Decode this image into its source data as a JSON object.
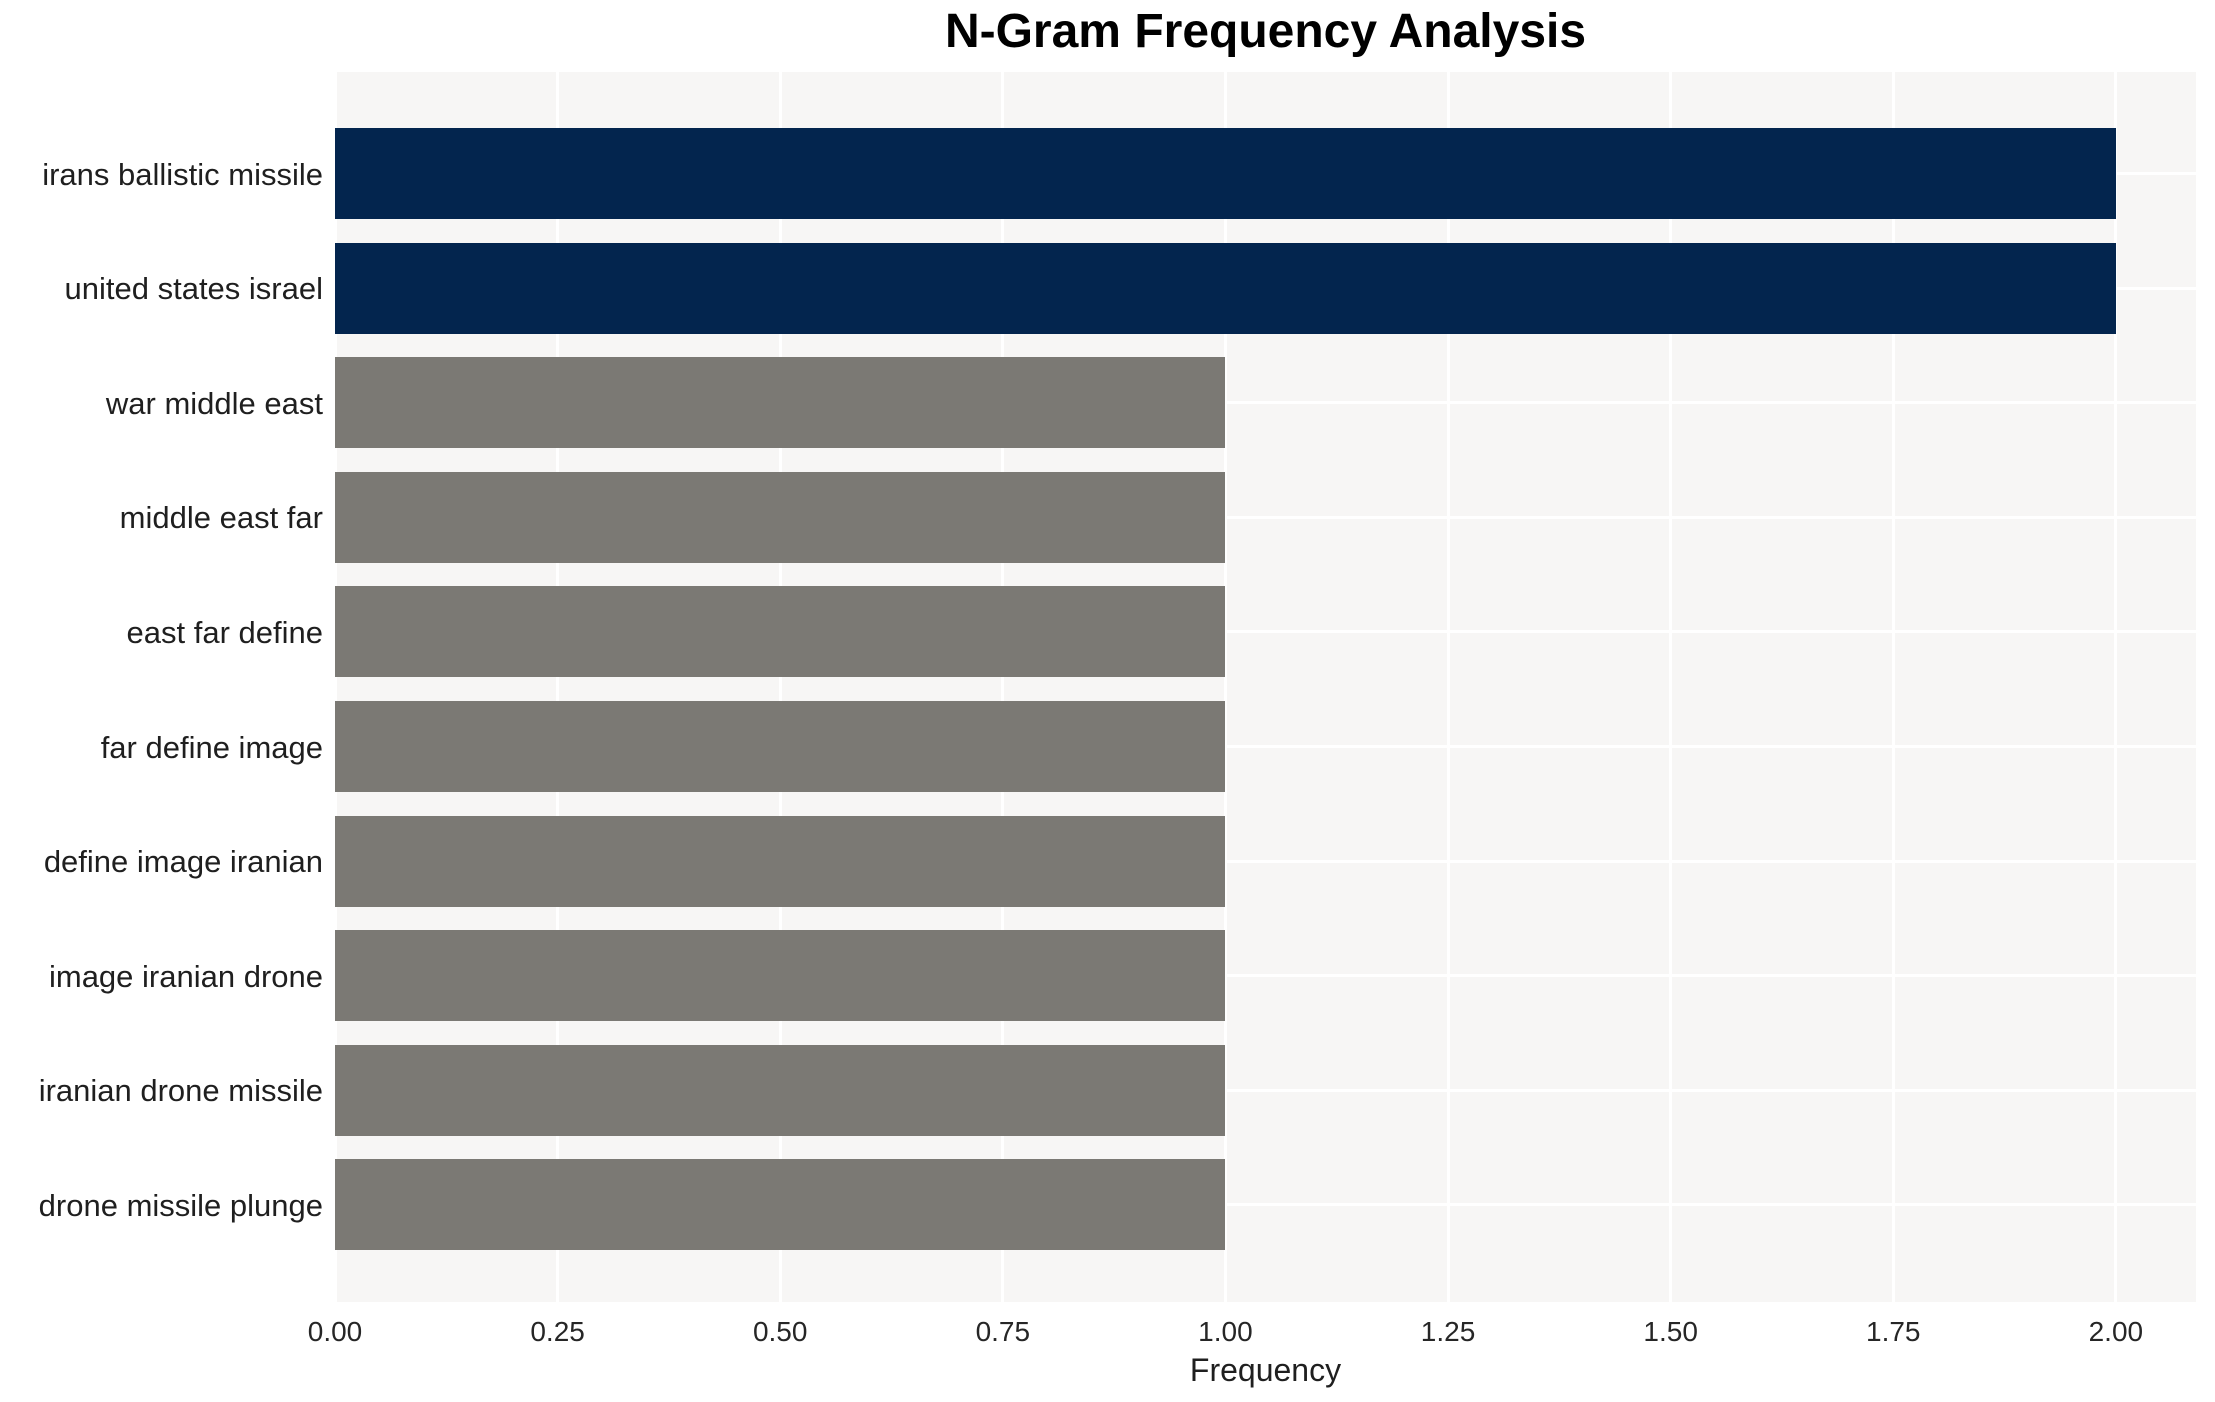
{
  "chart_data": {
    "type": "bar",
    "orientation": "horizontal",
    "title": "N-Gram Frequency Analysis",
    "xlabel": "Frequency",
    "ylabel": "",
    "categories": [
      "irans ballistic missile",
      "united states israel",
      "war middle east",
      "middle east far",
      "east far define",
      "far define image",
      "define image iranian",
      "image iranian drone",
      "iranian drone missile",
      "drone missile plunge"
    ],
    "values": [
      2.0,
      2.0,
      1.0,
      1.0,
      1.0,
      1.0,
      1.0,
      1.0,
      1.0,
      1.0
    ],
    "bar_colors": [
      "#03254e",
      "#03254e",
      "#7b7974",
      "#7b7974",
      "#7b7974",
      "#7b7974",
      "#7b7974",
      "#7b7974",
      "#7b7974",
      "#7b7974"
    ],
    "highlight_color": "#03254e",
    "default_color": "#7b7974",
    "xlim": [
      0,
      2.09
    ],
    "x_tick_values": [
      0.0,
      0.25,
      0.5,
      0.75,
      1.0,
      1.25,
      1.5,
      1.75,
      2.0
    ],
    "x_tick_labels": [
      "0.00",
      "0.25",
      "0.50",
      "0.75",
      "1.00",
      "1.25",
      "1.50",
      "1.75",
      "2.00"
    ],
    "grid": "on",
    "grid_color": "#ffffff",
    "plot_background": "#f7f6f5",
    "figure_background": "#ffffff",
    "legend": "none"
  }
}
